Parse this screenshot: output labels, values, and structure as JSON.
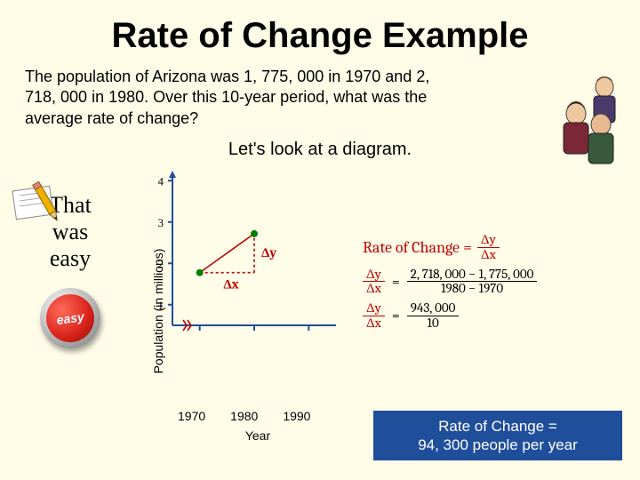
{
  "title": "Rate of Change Example",
  "problem": "The population of Arizona was 1, 775, 000 in 1970 and 2, 718, 000 in 1980.  Over this 10-year period, what was the average rate of change?",
  "lets_look": "Let's look at a diagram.",
  "left": {
    "that_was_easy_l1": "That",
    "that_was_easy_l2": "was",
    "that_was_easy_l3": "easy",
    "button_label": "easy"
  },
  "chart": {
    "type": "line-with-delta",
    "ylabel": "Population (in millions)",
    "xlabel": "Year",
    "yticks": [
      1,
      2,
      3,
      4
    ],
    "xticks": [
      "1970",
      "1980",
      "1990"
    ],
    "ylim": [
      0.5,
      4.2
    ],
    "xlim": [
      1965,
      1995
    ],
    "axis_color": "#1f4e9b",
    "tick_color": "#1f4e9b",
    "point_color": "#008000",
    "delta_line_color": "#c00000",
    "delta_dash": "3,3",
    "points": [
      {
        "x": 1970,
        "y": 1.775
      },
      {
        "x": 1980,
        "y": 2.718
      }
    ],
    "dy_label": "Δy",
    "dx_label": "Δx",
    "break_mark": true
  },
  "formulas": {
    "head": "Rate of Change =",
    "head_frac": {
      "num": "Δy",
      "den": "Δx"
    },
    "step1": {
      "num": "2, 718, 000 − 1, 775, 000",
      "den": "1980 − 1970"
    },
    "step2": {
      "num": "943, 000",
      "den": "10"
    },
    "lhs": "Δy",
    "lhs2": "Δx"
  },
  "answer": {
    "line1": "Rate of Change =",
    "line2": "94, 300 people per year"
  },
  "clipart": {
    "people_bg": "#c9d6ef",
    "pencil_color": "#f0b000"
  }
}
